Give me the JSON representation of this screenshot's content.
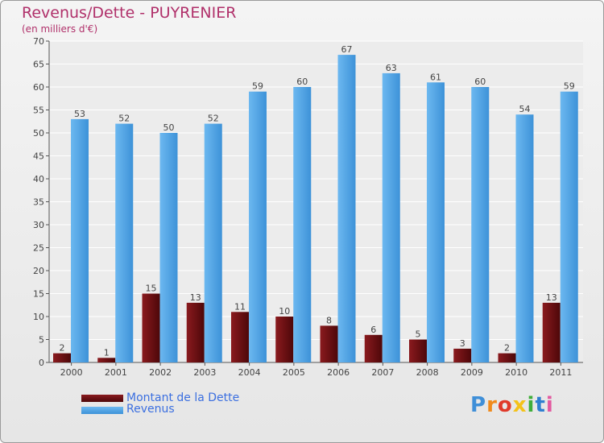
{
  "title": "Revenus/Dette - PUYRENIER",
  "subtitle": "(en milliers d'€)",
  "colors": {
    "dette": "#6b0f12",
    "revenus": "#4fa6e6",
    "title": "#b0306a",
    "legend_text": "#3b6fe0",
    "grid": "#ffffff"
  },
  "legend": {
    "dette_label": "Montant de la Dette",
    "revenus_label": "Revenus"
  },
  "logo": {
    "text": "Proxiti"
  },
  "chart_data": {
    "type": "bar",
    "title": "Revenus/Dette - PUYRENIER",
    "ylabel": "(en milliers d'€)",
    "xlabel": "",
    "categories": [
      "2000",
      "2001",
      "2002",
      "2003",
      "2004",
      "2005",
      "2006",
      "2007",
      "2008",
      "2009",
      "2010",
      "2011"
    ],
    "series": [
      {
        "name": "Montant de la Dette",
        "values": [
          2,
          1,
          15,
          13,
          11,
          10,
          8,
          6,
          5,
          3,
          2,
          13
        ]
      },
      {
        "name": "Revenus",
        "values": [
          53,
          52,
          50,
          52,
          59,
          60,
          67,
          63,
          61,
          60,
          54,
          59
        ]
      }
    ],
    "ylim": [
      0,
      70
    ],
    "yticks": [
      0,
      5,
      10,
      15,
      20,
      25,
      30,
      35,
      40,
      45,
      50,
      55,
      60,
      65,
      70
    ],
    "grid": true,
    "legend_position": "bottom-left"
  }
}
